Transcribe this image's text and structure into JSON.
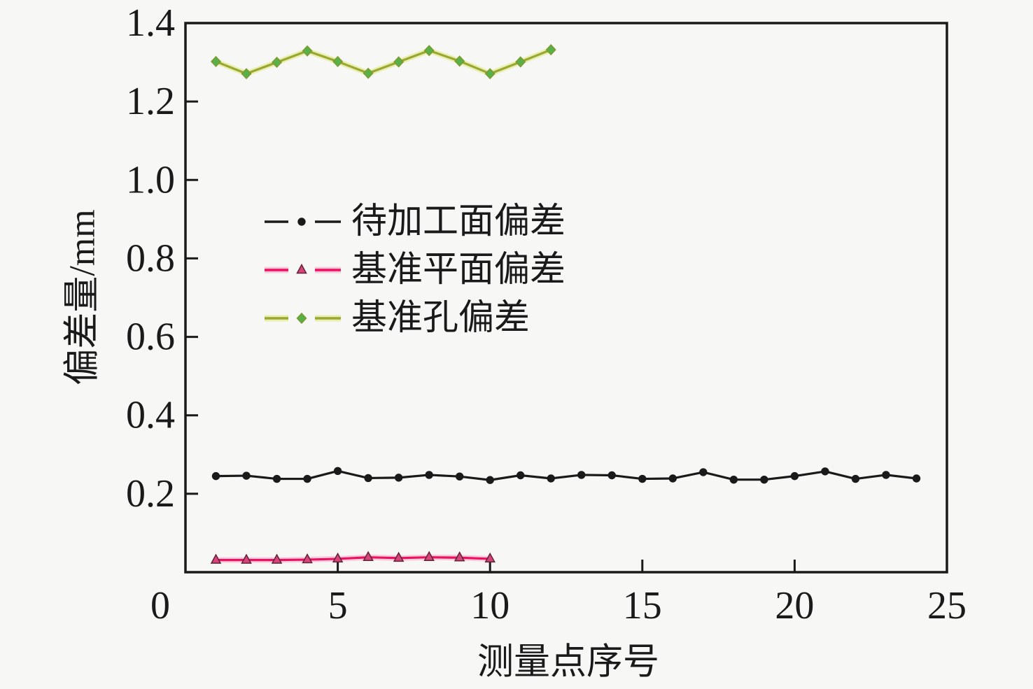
{
  "colors": {
    "background": "#f7f7f5",
    "axis": "#1a1a1a",
    "text": "#1a1a1a"
  },
  "chart_data": {
    "type": "line",
    "title": "",
    "xlabel": "测量点序号",
    "ylabel": "偏差量/mm",
    "xlim": [
      0,
      25
    ],
    "ylim": [
      0,
      1.4
    ],
    "x_ticks": [
      0,
      5,
      10,
      15,
      20,
      25
    ],
    "y_ticks": [
      0.2,
      0.4,
      0.6,
      0.8,
      1.0,
      1.2,
      1.4
    ],
    "grid": false,
    "legend_position": "upper-left-inside",
    "series": [
      {
        "key": "machined-surface-deviation",
        "name": "待加工面偏差",
        "marker": "circle",
        "line_color": "#1a1a1a",
        "halo_color": null,
        "marker_color": "#1a1a1a",
        "marker_edge": "#1a1a1a",
        "x": [
          1,
          2,
          3,
          4,
          5,
          6,
          7,
          8,
          9,
          10,
          11,
          12,
          13,
          14,
          15,
          16,
          17,
          18,
          19,
          20,
          21,
          22,
          23,
          24
        ],
        "y": [
          0.245,
          0.246,
          0.238,
          0.238,
          0.258,
          0.24,
          0.241,
          0.248,
          0.244,
          0.235,
          0.247,
          0.239,
          0.248,
          0.247,
          0.238,
          0.239,
          0.255,
          0.236,
          0.236,
          0.245,
          0.257,
          0.238,
          0.248,
          0.239
        ]
      },
      {
        "key": "datum-plane-deviation",
        "name": "基准平面偏差",
        "marker": "triangle",
        "line_color": "#ed1164",
        "halo_color": "#f9c5d6",
        "marker_color": "#d84379",
        "marker_edge": "#5f2438",
        "x": [
          1,
          2,
          3,
          4,
          5,
          6,
          7,
          8,
          9,
          10
        ],
        "y": [
          0.031,
          0.031,
          0.031,
          0.032,
          0.034,
          0.038,
          0.036,
          0.038,
          0.037,
          0.034
        ]
      },
      {
        "key": "datum-hole-deviation",
        "name": "基准孔偏差",
        "marker": "diamond",
        "line_color": "#9aa832",
        "halo_color": "#e7edaa",
        "marker_color": "#58b048",
        "marker_edge": "#7f9a2e",
        "x": [
          1,
          2,
          3,
          4,
          5,
          6,
          7,
          8,
          9,
          10,
          11,
          12
        ],
        "y": [
          1.302,
          1.271,
          1.3,
          1.329,
          1.302,
          1.272,
          1.301,
          1.33,
          1.303,
          1.271,
          1.301,
          1.332
        ]
      }
    ]
  }
}
